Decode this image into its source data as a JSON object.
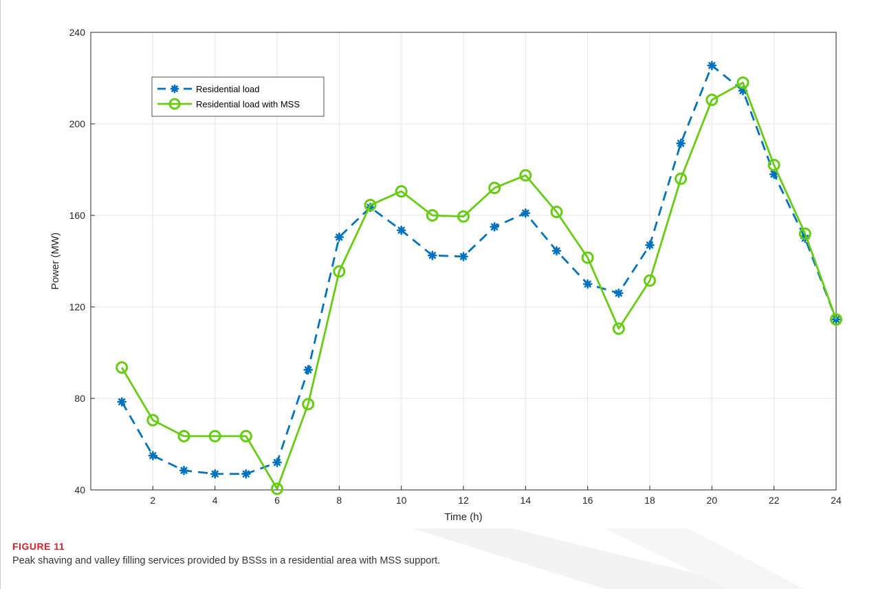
{
  "figure": {
    "label": "FIGURE 11",
    "caption": "Peak shaving and valley filling services provided by BSSs in a residential area with MSS support."
  },
  "chart_data": {
    "type": "line",
    "xlabel": "Time (h)",
    "ylabel": "Power (MW)",
    "xlim": [
      0,
      24
    ],
    "ylim": [
      40,
      240
    ],
    "xticks": [
      2,
      4,
      6,
      8,
      10,
      12,
      14,
      16,
      18,
      20,
      22,
      24
    ],
    "yticks": [
      40,
      80,
      120,
      160,
      200,
      240
    ],
    "grid": true,
    "legend_position": "top-left",
    "x": [
      1,
      2,
      3,
      4,
      5,
      6,
      7,
      8,
      9,
      10,
      11,
      12,
      13,
      14,
      15,
      16,
      17,
      18,
      19,
      20,
      21,
      22,
      23,
      24
    ],
    "series": [
      {
        "name": "Residential load",
        "style": "dashed-asterisk",
        "color": "#0072bd",
        "values": [
          78.5,
          55,
          48.5,
          47,
          47,
          52,
          92.5,
          150.5,
          163.5,
          153.5,
          142.5,
          142,
          155,
          161,
          144.5,
          130,
          126,
          147,
          191.5,
          225.5,
          214.5,
          178,
          150,
          114.5
        ]
      },
      {
        "name": "Residential load with MSS",
        "style": "solid-circle",
        "color": "#66cc11",
        "values": [
          93.5,
          70.5,
          63.5,
          63.5,
          63.5,
          40.5,
          77.5,
          135.5,
          164.5,
          170.5,
          160,
          159.5,
          172,
          177.5,
          161.5,
          141.5,
          110.5,
          131.5,
          176,
          210.5,
          218,
          182,
          152,
          114.5
        ]
      }
    ]
  },
  "colors": {
    "accent": "#d2232a",
    "grid": "#e6e6e6",
    "watermark": "#f1f1f1"
  }
}
